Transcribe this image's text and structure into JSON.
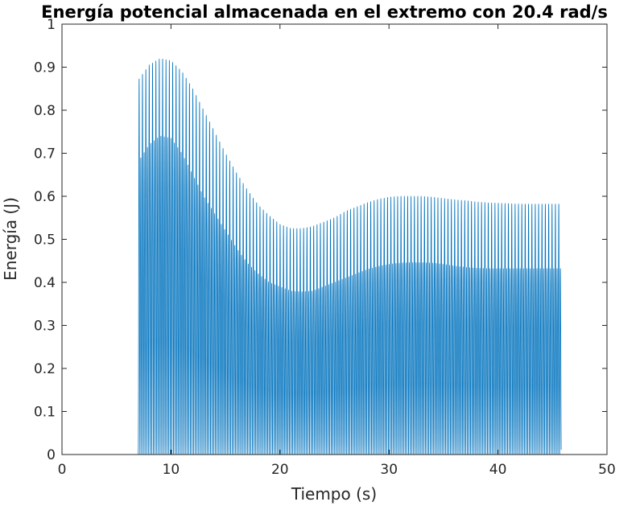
{
  "chart_data": {
    "type": "line",
    "title": "Energía potencial almacenada en el extremo con 20.4 rad/s",
    "xlabel": "Tiempo (s)",
    "ylabel": "Energía (J)",
    "xlim": [
      0,
      50
    ],
    "ylim": [
      0,
      1
    ],
    "xticks": [
      0,
      10,
      20,
      30,
      40,
      50
    ],
    "xtick_labels": [
      "0",
      "10",
      "20",
      "30",
      "40",
      "50"
    ],
    "yticks": [
      0,
      0.1,
      0.2,
      0.3,
      0.4,
      0.5,
      0.6,
      0.7,
      0.8,
      0.9,
      1
    ],
    "ytick_labels": [
      "0",
      "0.1",
      "0.2",
      "0.3",
      "0.4",
      "0.5",
      "0.6",
      "0.7",
      "0.8",
      "0.9",
      "1"
    ],
    "grid": false,
    "legend": "none",
    "line_color": "#0072BD",
    "series": [
      {
        "oscillation_frequency_rad_s": 20.4,
        "t_start": 7.0,
        "t_end": 45.8,
        "peak_envelope": {
          "t": [
            7.0,
            8.0,
            9.0,
            10.0,
            11.0,
            12.0,
            13.0,
            14.0,
            15.0,
            16.0,
            17.0,
            18.0,
            19.0,
            20.0,
            21.0,
            22.0,
            23.0,
            24.0,
            25.0,
            26.0,
            27.0,
            28.0,
            29.0,
            30.0,
            31.0,
            32.0,
            33.0,
            34.0,
            35.0,
            36.0,
            37.0,
            38.0,
            39.0,
            40.0,
            41.0,
            42.0,
            43.0,
            44.0,
            45.0,
            45.8
          ],
          "energy": [
            0.87,
            0.905,
            0.92,
            0.915,
            0.89,
            0.85,
            0.8,
            0.75,
            0.7,
            0.655,
            0.615,
            0.58,
            0.555,
            0.535,
            0.525,
            0.525,
            0.53,
            0.54,
            0.55,
            0.565,
            0.575,
            0.585,
            0.593,
            0.598,
            0.6,
            0.6,
            0.6,
            0.598,
            0.595,
            0.592,
            0.59,
            0.587,
            0.585,
            0.584,
            0.583,
            0.582,
            0.582,
            0.582,
            0.582,
            0.582
          ]
        },
        "secondary_envelope": {
          "t": [
            7.0,
            8.0,
            9.0,
            10.0,
            11.0,
            12.0,
            13.0,
            14.0,
            15.0,
            16.0,
            17.0,
            18.0,
            19.0,
            20.0,
            21.0,
            22.0,
            23.0,
            24.0,
            25.0,
            26.0,
            27.0,
            28.0,
            29.0,
            30.0,
            31.0,
            32.0,
            33.0,
            34.0,
            35.0,
            36.0,
            37.0,
            38.0,
            39.0,
            40.0,
            41.0,
            42.0,
            43.0,
            44.0,
            45.0,
            45.8
          ],
          "energy": [
            0.68,
            0.72,
            0.74,
            0.735,
            0.7,
            0.65,
            0.6,
            0.56,
            0.52,
            0.48,
            0.445,
            0.42,
            0.4,
            0.39,
            0.38,
            0.378,
            0.38,
            0.39,
            0.4,
            0.41,
            0.42,
            0.43,
            0.437,
            0.442,
            0.445,
            0.446,
            0.446,
            0.445,
            0.442,
            0.438,
            0.435,
            0.433,
            0.432,
            0.432,
            0.432,
            0.432,
            0.432,
            0.432,
            0.432,
            0.432
          ]
        }
      }
    ]
  }
}
